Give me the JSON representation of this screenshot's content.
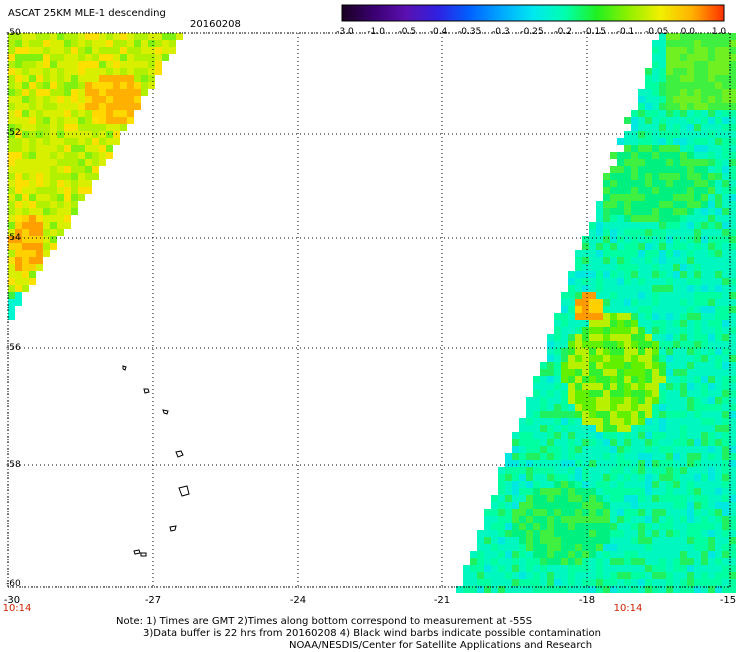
{
  "header": {
    "title": "ASCAT 25KM MLE-1 descending",
    "date": "20160208"
  },
  "colorbar": {
    "labels": [
      "-3.0",
      "-1.0",
      "-0.5",
      "-0.4",
      "-0.35",
      "-0.3",
      "-0.25",
      "-0.2",
      "-0.15",
      "-0.1",
      "-0.05",
      "0.0",
      "1.0"
    ],
    "colors": [
      "#1a0020",
      "#3a0070",
      "#5a10b0",
      "#3020e0",
      "#0060ff",
      "#00a8ff",
      "#00e8f0",
      "#00ffb0",
      "#20f020",
      "#90f000",
      "#f0f000",
      "#ffb000",
      "#ff3000"
    ]
  },
  "map": {
    "lat_labels": [
      "-50",
      "-52",
      "-54",
      "-56",
      "-58",
      "-60"
    ],
    "lon_labels": [
      "-30",
      "-27",
      "-24",
      "-21",
      "-18",
      "-15"
    ],
    "time_labels": [
      "10:14",
      "10:14"
    ]
  },
  "footer": {
    "note1": "Note: 1) Times are GMT 2)Times along bottom correspond to measurement at -55S",
    "note2": "3)Data buffer is 22 hrs from 20160208 4) Black wind barbs indicate possible contamination",
    "note3": "NOAA/NESDIS/Center for Satellite Applications and Research"
  }
}
